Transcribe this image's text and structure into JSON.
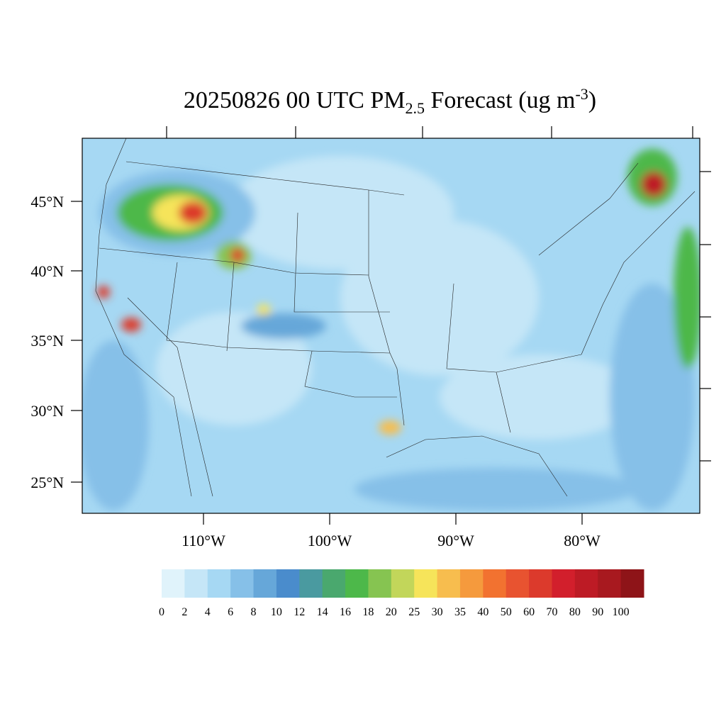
{
  "title": {
    "main": "20250826 00 UTC PM",
    "sub": "2.5",
    "mid": " Forecast (ug m",
    "sup": "-3",
    "end": ")"
  },
  "lat_labels": [
    "45°N",
    "40°N",
    "35°N",
    "30°N",
    "25°N"
  ],
  "lon_labels": [
    "110°W",
    "100°W",
    "90°W",
    "80°W"
  ],
  "colorbar": {
    "labels": [
      0,
      2,
      4,
      6,
      8,
      10,
      12,
      14,
      16,
      18,
      20,
      25,
      30,
      35,
      40,
      50,
      60,
      70,
      80,
      90,
      100
    ],
    "colors": [
      "#e0f3fb",
      "#c5e6f7",
      "#a6d8f3",
      "#86c0e8",
      "#66a7d9",
      "#4a8ccc",
      "#4a9aa0",
      "#4aa86e",
      "#4db84a",
      "#86c451",
      "#c2d65a",
      "#f6e45a",
      "#f7bd4e",
      "#f59a3d",
      "#f27230",
      "#e85330",
      "#dc3a2c",
      "#d21f2c",
      "#bd1b25",
      "#a8191f",
      "#8e1418"
    ]
  }
}
